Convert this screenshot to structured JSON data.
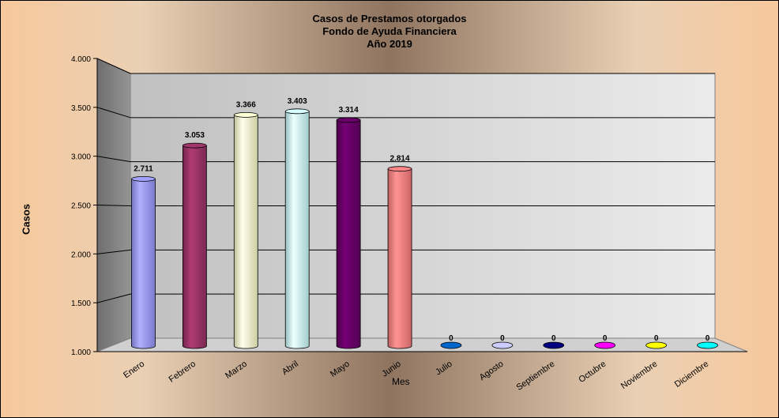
{
  "chart_data": {
    "type": "bar",
    "title": [
      "Casos de Prestamos otorgados",
      "Fondo de Ayuda  Financiera",
      "Año  2019"
    ],
    "xlabel": "Mes",
    "ylabel": "Casos",
    "ylim": [
      1000,
      4000
    ],
    "yticks": [
      "1.000",
      "1.500",
      "2.000",
      "2.500",
      "3.000",
      "3.500",
      "4.000"
    ],
    "categories": [
      "Enero",
      "Febrero",
      "Marzo",
      "Abril",
      "Mayo",
      "Junio",
      "Julio",
      "Agosto",
      "Septiembre",
      "Octubre",
      "Noviembre",
      "Diciembre"
    ],
    "values": [
      2711,
      3053,
      3366,
      3403,
      3314,
      2814,
      0,
      0,
      0,
      0,
      0,
      0
    ],
    "data_labels": [
      "2.711",
      "3.053",
      "3.366",
      "3.403",
      "3.314",
      "2.814",
      "0",
      "0",
      "0",
      "0",
      "0",
      "0"
    ],
    "colors": [
      "#9999ff",
      "#993366",
      "#ffffcc",
      "#ccffff",
      "#660066",
      "#ff8080",
      "#0066cc",
      "#ccccff",
      "#000080",
      "#ff00ff",
      "#ffff00",
      "#00ffff"
    ],
    "grid": true,
    "legend": "none"
  }
}
